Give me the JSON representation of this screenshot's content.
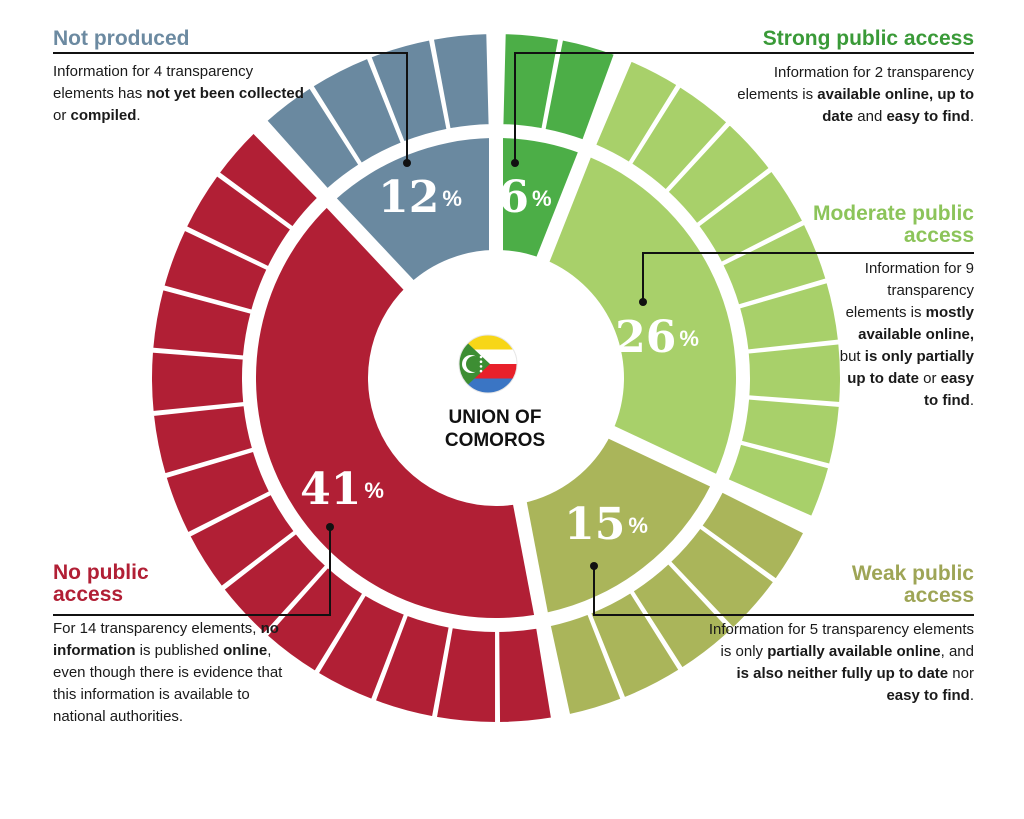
{
  "country": {
    "name_line1": "UNION OF",
    "name_line2": "COMOROS",
    "flag_icon": "comoros-flag-icon"
  },
  "chart_data": {
    "type": "pie",
    "subtype": "donut",
    "unit": "%",
    "total_elements": 34,
    "slices": [
      {
        "key": "strong",
        "label": "Strong public access",
        "value": 6,
        "elements": 2,
        "color": "#4cae47",
        "outer_color": "#4cae47",
        "title_color": "#3a9a38",
        "description": [
          {
            "t": "Information for 2 transparency elements is "
          },
          {
            "t": "available online, up to date",
            "b": true
          },
          {
            "t": " and "
          },
          {
            "t": "easy to find",
            "b": true
          },
          {
            "t": "."
          }
        ]
      },
      {
        "key": "moderate",
        "label": "Moderate public access",
        "value": 26,
        "elements": 9,
        "color": "#a8d06a",
        "outer_color": "#a8d06a",
        "title_color": "#8cc45a",
        "description": [
          {
            "t": "Information for 9 transparency elements is "
          },
          {
            "t": "mostly available online,",
            "b": true
          },
          {
            "t": " but "
          },
          {
            "t": "is only partially up to date",
            "b": true
          },
          {
            "t": " or "
          },
          {
            "t": "easy to find",
            "b": true
          },
          {
            "t": "."
          }
        ]
      },
      {
        "key": "weak",
        "label": "Weak public access",
        "value": 15,
        "elements": 5,
        "color": "#aab55a",
        "outer_color": "#aab55a",
        "title_color": "#9ea556",
        "description": [
          {
            "t": "Information for 5 transparency elements is only "
          },
          {
            "t": "partially available online",
            "b": true
          },
          {
            "t": ", and "
          },
          {
            "t": "is also neither fully up to date",
            "b": true
          },
          {
            "t": " nor "
          },
          {
            "t": "easy to find",
            "b": true
          },
          {
            "t": "."
          }
        ]
      },
      {
        "key": "none",
        "label": "No public access",
        "value": 41,
        "elements": 14,
        "color": "#b11f35",
        "outer_color": "#b11f35",
        "title_color": "#b11f35",
        "description": [
          {
            "t": "For 14 transparency elements, "
          },
          {
            "t": "no information",
            "b": true
          },
          {
            "t": " is published "
          },
          {
            "t": "online",
            "b": true
          },
          {
            "t": ", even though there is evidence that this information is available to national authorities."
          }
        ]
      },
      {
        "key": "notproduced",
        "label": "Not produced",
        "value": 12,
        "elements": 4,
        "color": "#6a89a0",
        "outer_color": "#6a89a0",
        "title_color": "#6c8aa1",
        "description": [
          {
            "t": "Information for 4 transparency elements has "
          },
          {
            "t": "not yet been collected",
            "b": true
          },
          {
            "t": " or "
          },
          {
            "t": "compiled",
            "b": true
          },
          {
            "t": "."
          }
        ]
      }
    ]
  }
}
